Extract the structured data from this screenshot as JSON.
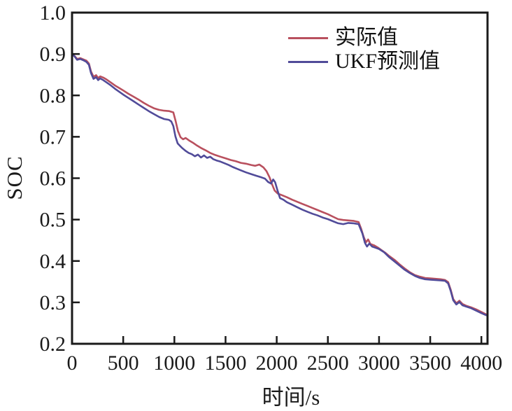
{
  "chart_data": {
    "type": "line",
    "title": "",
    "xlabel": "时间/s",
    "ylabel": "SOC",
    "xlim": [
      0,
      4060
    ],
    "ylim": [
      0.2,
      1.0
    ],
    "grid": false,
    "legend_position": "top-center-inside",
    "axis_color": "#1a1a1a",
    "background_color": "#ffffff",
    "x_ticks": [
      0,
      500,
      1000,
      1500,
      2000,
      2500,
      3000,
      3500,
      4000
    ],
    "x_tick_labels": [
      "0",
      "500",
      "1000",
      "1500",
      "2000",
      "2500",
      "3000",
      "3500",
      "4000"
    ],
    "y_ticks": [
      0.2,
      0.3,
      0.4,
      0.5,
      0.6,
      0.7,
      0.8,
      0.9,
      1.0
    ],
    "y_tick_labels": [
      "0.2",
      "0.3",
      "0.4",
      "0.5",
      "0.6",
      "0.7",
      "0.8",
      "0.9",
      "1.0"
    ],
    "series": [
      {
        "id": "actual",
        "name": "实际值",
        "color": "#b9505e",
        "points": [
          [
            0,
            0.9
          ],
          [
            25,
            0.895
          ],
          [
            50,
            0.888
          ],
          [
            80,
            0.89
          ],
          [
            110,
            0.887
          ],
          [
            140,
            0.884
          ],
          [
            165,
            0.877
          ],
          [
            185,
            0.858
          ],
          [
            210,
            0.845
          ],
          [
            235,
            0.849
          ],
          [
            255,
            0.842
          ],
          [
            275,
            0.846
          ],
          [
            305,
            0.843
          ],
          [
            340,
            0.838
          ],
          [
            380,
            0.831
          ],
          [
            420,
            0.824
          ],
          [
            460,
            0.818
          ],
          [
            500,
            0.812
          ],
          [
            550,
            0.804
          ],
          [
            600,
            0.797
          ],
          [
            650,
            0.79
          ],
          [
            700,
            0.782
          ],
          [
            750,
            0.775
          ],
          [
            800,
            0.769
          ],
          [
            850,
            0.765
          ],
          [
            900,
            0.763
          ],
          [
            950,
            0.762
          ],
          [
            990,
            0.759
          ],
          [
            1012,
            0.738
          ],
          [
            1035,
            0.714
          ],
          [
            1060,
            0.699
          ],
          [
            1085,
            0.694
          ],
          [
            1110,
            0.697
          ],
          [
            1145,
            0.691
          ],
          [
            1180,
            0.686
          ],
          [
            1220,
            0.679
          ],
          [
            1260,
            0.673
          ],
          [
            1300,
            0.668
          ],
          [
            1350,
            0.661
          ],
          [
            1400,
            0.656
          ],
          [
            1450,
            0.652
          ],
          [
            1500,
            0.648
          ],
          [
            1550,
            0.644
          ],
          [
            1600,
            0.641
          ],
          [
            1650,
            0.637
          ],
          [
            1700,
            0.635
          ],
          [
            1750,
            0.632
          ],
          [
            1790,
            0.63
          ],
          [
            1830,
            0.633
          ],
          [
            1870,
            0.626
          ],
          [
            1900,
            0.617
          ],
          [
            1930,
            0.602
          ],
          [
            1955,
            0.585
          ],
          [
            1980,
            0.57
          ],
          [
            2010,
            0.563
          ],
          [
            2050,
            0.559
          ],
          [
            2100,
            0.554
          ],
          [
            2150,
            0.548
          ],
          [
            2200,
            0.543
          ],
          [
            2250,
            0.538
          ],
          [
            2300,
            0.533
          ],
          [
            2350,
            0.528
          ],
          [
            2400,
            0.523
          ],
          [
            2450,
            0.518
          ],
          [
            2500,
            0.513
          ],
          [
            2550,
            0.507
          ],
          [
            2600,
            0.501
          ],
          [
            2650,
            0.499
          ],
          [
            2700,
            0.498
          ],
          [
            2750,
            0.497
          ],
          [
            2800,
            0.494
          ],
          [
            2825,
            0.478
          ],
          [
            2850,
            0.458
          ],
          [
            2872,
            0.445
          ],
          [
            2893,
            0.452
          ],
          [
            2915,
            0.441
          ],
          [
            2950,
            0.438
          ],
          [
            2985,
            0.433
          ],
          [
            3020,
            0.427
          ],
          [
            3060,
            0.42
          ],
          [
            3100,
            0.412
          ],
          [
            3150,
            0.403
          ],
          [
            3200,
            0.392
          ],
          [
            3250,
            0.382
          ],
          [
            3300,
            0.373
          ],
          [
            3350,
            0.366
          ],
          [
            3400,
            0.362
          ],
          [
            3450,
            0.359
          ],
          [
            3500,
            0.358
          ],
          [
            3550,
            0.357
          ],
          [
            3600,
            0.356
          ],
          [
            3645,
            0.354
          ],
          [
            3675,
            0.349
          ],
          [
            3700,
            0.331
          ],
          [
            3725,
            0.308
          ],
          [
            3755,
            0.298
          ],
          [
            3785,
            0.304
          ],
          [
            3815,
            0.296
          ],
          [
            3850,
            0.292
          ],
          [
            3900,
            0.288
          ],
          [
            3950,
            0.283
          ],
          [
            4000,
            0.277
          ],
          [
            4047,
            0.271
          ]
        ]
      },
      {
        "id": "ukf",
        "name": "UKF预测值",
        "color": "#514b99",
        "points": [
          [
            0,
            0.9
          ],
          [
            25,
            0.894
          ],
          [
            50,
            0.886
          ],
          [
            80,
            0.888
          ],
          [
            110,
            0.885
          ],
          [
            140,
            0.881
          ],
          [
            165,
            0.874
          ],
          [
            185,
            0.854
          ],
          [
            210,
            0.84
          ],
          [
            235,
            0.844
          ],
          [
            255,
            0.837
          ],
          [
            275,
            0.841
          ],
          [
            305,
            0.837
          ],
          [
            340,
            0.831
          ],
          [
            380,
            0.824
          ],
          [
            420,
            0.816
          ],
          [
            460,
            0.809
          ],
          [
            500,
            0.802
          ],
          [
            550,
            0.794
          ],
          [
            600,
            0.786
          ],
          [
            650,
            0.778
          ],
          [
            700,
            0.77
          ],
          [
            750,
            0.762
          ],
          [
            800,
            0.755
          ],
          [
            850,
            0.748
          ],
          [
            900,
            0.743
          ],
          [
            945,
            0.741
          ],
          [
            970,
            0.737
          ],
          [
            990,
            0.726
          ],
          [
            1010,
            0.701
          ],
          [
            1032,
            0.684
          ],
          [
            1055,
            0.678
          ],
          [
            1080,
            0.672
          ],
          [
            1110,
            0.666
          ],
          [
            1140,
            0.661
          ],
          [
            1170,
            0.658
          ],
          [
            1200,
            0.653
          ],
          [
            1230,
            0.657
          ],
          [
            1260,
            0.65
          ],
          [
            1290,
            0.655
          ],
          [
            1320,
            0.649
          ],
          [
            1350,
            0.652
          ],
          [
            1380,
            0.646
          ],
          [
            1410,
            0.643
          ],
          [
            1450,
            0.64
          ],
          [
            1490,
            0.636
          ],
          [
            1530,
            0.632
          ],
          [
            1570,
            0.627
          ],
          [
            1610,
            0.623
          ],
          [
            1650,
            0.619
          ],
          [
            1700,
            0.614
          ],
          [
            1750,
            0.61
          ],
          [
            1800,
            0.606
          ],
          [
            1850,
            0.602
          ],
          [
            1885,
            0.599
          ],
          [
            1915,
            0.591
          ],
          [
            1945,
            0.587
          ],
          [
            1965,
            0.597
          ],
          [
            1985,
            0.59
          ],
          [
            2008,
            0.57
          ],
          [
            2032,
            0.552
          ],
          [
            2065,
            0.548
          ],
          [
            2100,
            0.542
          ],
          [
            2150,
            0.536
          ],
          [
            2200,
            0.53
          ],
          [
            2250,
            0.524
          ],
          [
            2300,
            0.519
          ],
          [
            2350,
            0.514
          ],
          [
            2400,
            0.51
          ],
          [
            2450,
            0.505
          ],
          [
            2500,
            0.501
          ],
          [
            2550,
            0.496
          ],
          [
            2600,
            0.491
          ],
          [
            2650,
            0.489
          ],
          [
            2700,
            0.492
          ],
          [
            2750,
            0.491
          ],
          [
            2800,
            0.489
          ],
          [
            2838,
            0.466
          ],
          [
            2862,
            0.444
          ],
          [
            2882,
            0.435
          ],
          [
            2905,
            0.442
          ],
          [
            2932,
            0.435
          ],
          [
            2965,
            0.432
          ],
          [
            3000,
            0.429
          ],
          [
            3050,
            0.421
          ],
          [
            3100,
            0.409
          ],
          [
            3150,
            0.399
          ],
          [
            3200,
            0.389
          ],
          [
            3250,
            0.379
          ],
          [
            3300,
            0.371
          ],
          [
            3350,
            0.364
          ],
          [
            3400,
            0.359
          ],
          [
            3450,
            0.356
          ],
          [
            3500,
            0.355
          ],
          [
            3550,
            0.354
          ],
          [
            3600,
            0.353
          ],
          [
            3645,
            0.352
          ],
          [
            3675,
            0.346
          ],
          [
            3700,
            0.328
          ],
          [
            3725,
            0.305
          ],
          [
            3755,
            0.295
          ],
          [
            3785,
            0.301
          ],
          [
            3815,
            0.293
          ],
          [
            3850,
            0.29
          ],
          [
            3900,
            0.286
          ],
          [
            3950,
            0.28
          ],
          [
            4000,
            0.274
          ],
          [
            4047,
            0.269
          ]
        ]
      }
    ]
  }
}
